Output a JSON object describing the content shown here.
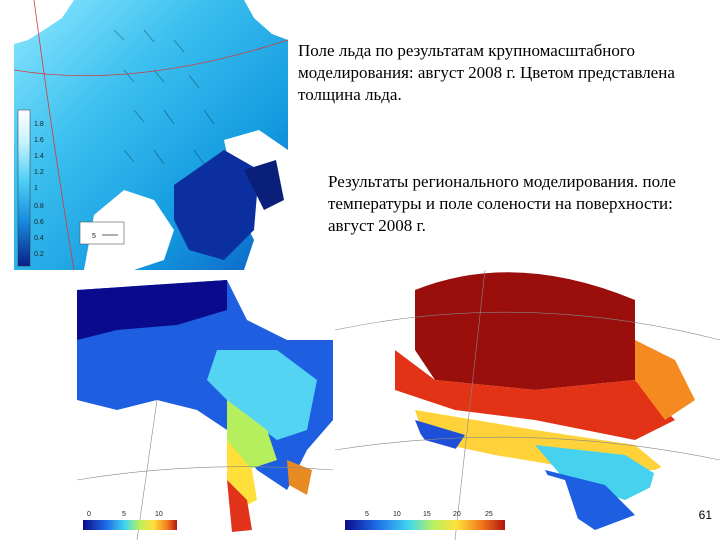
{
  "captions": {
    "ice_field": "Поле льда по результатам крупномасштабного моделирования: август 2008 г. Цветом представлена толщина льда.",
    "regional": "Результаты регионального моделирования. поле температуры и поле солености на поверхности: август 2008 г."
  },
  "ice_map": {
    "colorbar_ticks": [
      "1.8",
      "1.6",
      "1.4",
      "1.2",
      "1",
      "0.8",
      "0.6",
      "0.4",
      "0.2"
    ],
    "scale_label": "5"
  },
  "temperature_map": {
    "colorbar_ticks": [
      "0",
      "5",
      "10"
    ]
  },
  "salinity_map": {
    "colorbar_ticks": [
      "5",
      "10",
      "15",
      "20",
      "25"
    ]
  },
  "page_number": "61",
  "colors": {
    "ice_light": "#7fe3ff",
    "ice_mid": "#1aa6e6",
    "ice_dark": "#0b2f9e",
    "warm": "#c4190f",
    "hot": "#8b0d0a"
  }
}
